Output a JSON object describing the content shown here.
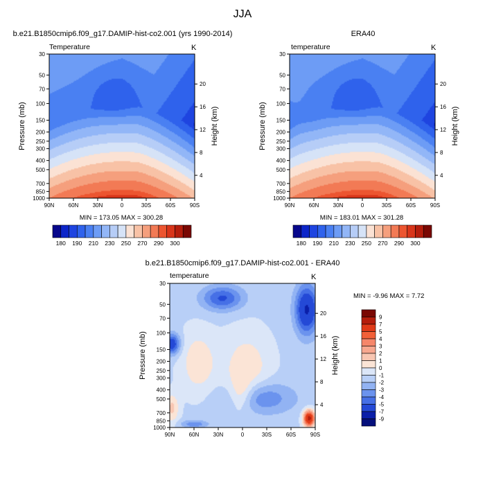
{
  "page_title": "JJA",
  "panels": [
    {
      "title": "b.e21.B1850cmip6.f09_g17.DAMIP-hist-co2.001 (yrs 1990-2014)",
      "variable": "Temperature",
      "units": "K",
      "stats": "MIN = 173.05   MAX = 300.28"
    },
    {
      "title": "ERA40",
      "variable": "temperature",
      "units": "K",
      "stats": "MIN = 183.01   MAX = 301.28"
    },
    {
      "title": "b.e21.B1850cmip6.f09_g17.DAMIP-hist-co2.001 - ERA40",
      "variable": "temperature",
      "units": "K",
      "stats": "MIN =  -9.96  MAX =   7.72"
    }
  ],
  "chart_data": [
    {
      "type": "heatmap",
      "title": "b.e21.B1850cmip6.f09_g17.DAMIP-hist-co2.001 (yrs 1990-2014)",
      "subtitle": "Temperature",
      "units": "K",
      "x": {
        "ticks": [
          "90N",
          "60N",
          "30N",
          "0",
          "30S",
          "60S",
          "90S"
        ],
        "values": [
          90,
          60,
          30,
          0,
          -30,
          -60,
          -90
        ],
        "range": [
          90,
          -90
        ]
      },
      "y": {
        "label": "Pressure (mb)",
        "ticks": [
          30,
          50,
          70,
          100,
          150,
          200,
          250,
          300,
          400,
          500,
          700,
          850,
          1000
        ],
        "range": [
          30,
          1000
        ],
        "scale": "log"
      },
      "y_right": {
        "label": "Height (km)",
        "ticks": [
          4,
          8,
          12,
          16,
          20
        ]
      },
      "min": 173.05,
      "max": 300.28,
      "colorbar": {
        "labels": [
          "180",
          "190",
          "210",
          "230",
          "250",
          "270",
          "290",
          "300"
        ]
      }
    },
    {
      "type": "heatmap",
      "title": "ERA40",
      "subtitle": "temperature",
      "units": "K",
      "x": {
        "ticks": [
          "90N",
          "60N",
          "30N",
          "0",
          "30S",
          "60S",
          "90S"
        ],
        "values": [
          90,
          60,
          30,
          0,
          -30,
          -60,
          -90
        ],
        "range": [
          90,
          -90
        ]
      },
      "y": {
        "label": "Pressure (mb)",
        "ticks": [
          30,
          50,
          70,
          100,
          150,
          200,
          250,
          300,
          400,
          500,
          700,
          850,
          1000
        ],
        "range": [
          30,
          1000
        ],
        "scale": "log"
      },
      "y_right": {
        "label": "Height (km)",
        "ticks": [
          4,
          8,
          12,
          16,
          20
        ]
      },
      "min": 183.01,
      "max": 301.28,
      "colorbar": {
        "labels": [
          "180",
          "190",
          "210",
          "230",
          "250",
          "270",
          "290",
          "300"
        ]
      }
    },
    {
      "type": "heatmap",
      "title": "b.e21.B1850cmip6.f09_g17.DAMIP-hist-co2.001 - ERA40",
      "subtitle": "temperature",
      "units": "K",
      "x": {
        "ticks": [
          "90N",
          "60N",
          "30N",
          "0",
          "30S",
          "60S",
          "90S"
        ],
        "values": [
          90,
          60,
          30,
          0,
          -30,
          -60,
          -90
        ],
        "range": [
          90,
          -90
        ]
      },
      "y": {
        "label": "Pressure (mb)",
        "ticks": [
          30,
          50,
          70,
          100,
          150,
          200,
          250,
          300,
          400,
          500,
          700,
          850,
          1000
        ],
        "range": [
          30,
          1000
        ],
        "scale": "log"
      },
      "y_right": {
        "label": "Height (km)",
        "ticks": [
          4,
          8,
          12,
          16,
          20
        ]
      },
      "min": -9.96,
      "max": 7.72,
      "colorbar": {
        "labels": [
          "9",
          "7",
          "5",
          "4",
          "3",
          "2",
          "1",
          "0",
          "-1",
          "-2",
          "-3",
          "-4",
          "-5",
          "-7",
          "-9"
        ]
      }
    }
  ],
  "colors": {
    "abs_scale": [
      "#08088c",
      "#0c25c8",
      "#1e44e0",
      "#2f62ec",
      "#4a80f2",
      "#6d9cf5",
      "#92b6f7",
      "#b6cdf7",
      "#d6e3f7",
      "#fbe2d4",
      "#f8c2a6",
      "#f59f7d",
      "#f27a55",
      "#ec5530",
      "#d8351a",
      "#b41d0c",
      "#7a0803"
    ],
    "diff_scale": [
      "#7a0803",
      "#b41d0c",
      "#e03a18",
      "#f26038",
      "#f5866a",
      "#f7a78f",
      "#f8c6b2",
      "#fbe4d6",
      "#dbe6f8",
      "#b8cff7",
      "#92b3f3",
      "#6b93ee",
      "#4670e6",
      "#2449d6",
      "#0a1ea8",
      "#05107c"
    ]
  }
}
